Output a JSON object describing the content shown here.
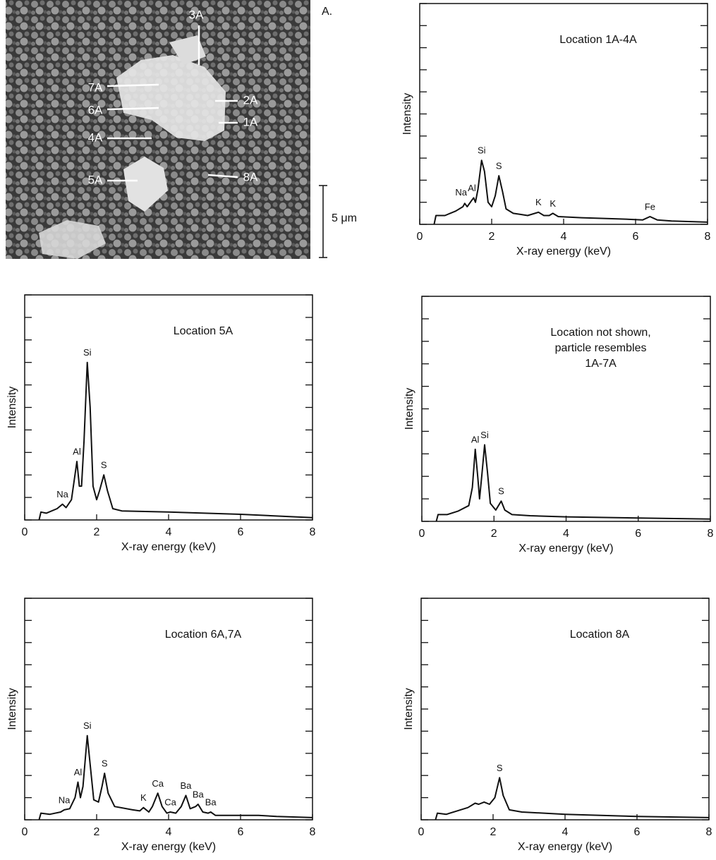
{
  "image": {
    "panel_label": "A.",
    "scale_bar": "5 μm",
    "labels": [
      "3A",
      "7A",
      "6A",
      "2A",
      "1A",
      "4A",
      "5A",
      "8A"
    ]
  },
  "chart_data": [
    {
      "type": "line",
      "annotation": [
        "Location 1A-4A"
      ],
      "x_label": "X-ray energy (keV)",
      "y_label": "Intensity",
      "xlim": [
        0,
        8
      ],
      "xticks": [
        0,
        2,
        4,
        6,
        8
      ],
      "ylim": [
        0,
        10
      ],
      "yticks": [
        0,
        1,
        2,
        3,
        4,
        5,
        6,
        7,
        8,
        9,
        10
      ],
      "show_ytick_labels": false,
      "color": "#111111",
      "x": [
        0.4,
        0.45,
        0.7,
        1.0,
        1.2,
        1.25,
        1.32,
        1.45,
        1.5,
        1.55,
        1.62,
        1.72,
        1.8,
        1.9,
        2.0,
        2.1,
        2.2,
        2.3,
        2.4,
        2.6,
        2.8,
        3.0,
        3.3,
        3.45,
        3.6,
        3.7,
        3.85,
        4.5,
        5.5,
        6.2,
        6.4,
        6.6,
        7.0,
        8.0
      ],
      "values": [
        0,
        0.4,
        0.4,
        0.6,
        0.8,
        0.95,
        0.8,
        1.1,
        1.2,
        1.0,
        1.6,
        2.9,
        2.4,
        1.0,
        0.8,
        1.3,
        2.2,
        1.5,
        0.7,
        0.5,
        0.45,
        0.4,
        0.55,
        0.4,
        0.4,
        0.5,
        0.35,
        0.3,
        0.25,
        0.2,
        0.35,
        0.2,
        0.15,
        0.1
      ],
      "peak_labels": [
        {
          "text": "Na",
          "x": 1.15,
          "y": 1.0
        },
        {
          "text": "Al",
          "x": 1.45,
          "y": 1.2
        },
        {
          "text": "Si",
          "x": 1.72,
          "y": 2.9
        },
        {
          "text": "S",
          "x": 2.2,
          "y": 2.2
        },
        {
          "text": "K",
          "x": 3.3,
          "y": 0.55
        },
        {
          "text": "K",
          "x": 3.7,
          "y": 0.5
        },
        {
          "text": "Fe",
          "x": 6.4,
          "y": 0.35
        }
      ]
    },
    {
      "type": "line",
      "annotation": [
        "Location 5A"
      ],
      "x_label": "X-ray energy (keV)",
      "y_label": "Intensity",
      "xlim": [
        0,
        8
      ],
      "xticks": [
        0,
        2,
        4,
        6,
        8
      ],
      "ylim": [
        0,
        10
      ],
      "yticks": [
        0,
        1,
        2,
        3,
        4,
        5,
        6,
        7,
        8,
        9,
        10
      ],
      "show_ytick_labels": false,
      "color": "#111111",
      "x": [
        0.4,
        0.45,
        0.6,
        0.9,
        1.05,
        1.15,
        1.3,
        1.45,
        1.52,
        1.58,
        1.65,
        1.74,
        1.82,
        1.9,
        2.0,
        2.08,
        2.2,
        2.3,
        2.45,
        2.7,
        4.0,
        6.0,
        8.0
      ],
      "values": [
        0,
        0.35,
        0.3,
        0.5,
        0.7,
        0.55,
        0.9,
        2.6,
        1.5,
        1.5,
        3.5,
        7.0,
        5.0,
        1.5,
        0.9,
        1.3,
        2.0,
        1.3,
        0.5,
        0.4,
        0.35,
        0.25,
        0.1
      ],
      "peak_labels": [
        {
          "text": "Na",
          "x": 1.05,
          "y": 0.7
        },
        {
          "text": "Al",
          "x": 1.45,
          "y": 2.6
        },
        {
          "text": "Si",
          "x": 1.74,
          "y": 7.0
        },
        {
          "text": "S",
          "x": 2.2,
          "y": 2.0
        }
      ]
    },
    {
      "type": "line",
      "annotation": [
        "Location not shown,",
        "particle resembles",
        "1A-7A"
      ],
      "x_label": "X-ray energy (keV)",
      "y_label": "Intensity",
      "xlim": [
        0,
        8
      ],
      "xticks": [
        0,
        2,
        4,
        6,
        8
      ],
      "ylim": [
        0,
        10
      ],
      "yticks": [
        0,
        1,
        2,
        3,
        4,
        5,
        6,
        7,
        8,
        9,
        10
      ],
      "show_ytick_labels": false,
      "color": "#111111",
      "x": [
        0.4,
        0.45,
        0.7,
        1.0,
        1.3,
        1.4,
        1.48,
        1.55,
        1.6,
        1.66,
        1.74,
        1.82,
        1.9,
        2.05,
        2.2,
        2.3,
        2.5,
        3.0,
        4.0,
        6.0,
        8.0
      ],
      "values": [
        0,
        0.3,
        0.3,
        0.45,
        0.7,
        1.5,
        3.2,
        2.0,
        1.0,
        2.0,
        3.4,
        2.2,
        0.8,
        0.5,
        0.9,
        0.5,
        0.3,
        0.25,
        0.2,
        0.15,
        0.1
      ],
      "peak_labels": [
        {
          "text": "Al",
          "x": 1.48,
          "y": 3.2
        },
        {
          "text": "Si",
          "x": 1.74,
          "y": 3.4
        },
        {
          "text": "S",
          "x": 2.2,
          "y": 0.9
        }
      ]
    },
    {
      "type": "line",
      "annotation": [
        "Location 6A,7A"
      ],
      "x_label": "X-ray energy (keV)",
      "y_label": "Intensity",
      "xlim": [
        0,
        8
      ],
      "xticks": [
        0,
        2,
        4,
        6,
        8
      ],
      "ylim": [
        0,
        10
      ],
      "yticks": [
        0,
        1,
        2,
        3,
        4,
        5,
        6,
        7,
        8,
        9,
        10
      ],
      "show_ytick_labels": false,
      "color": "#111111",
      "x": [
        0.4,
        0.45,
        0.7,
        1.0,
        1.1,
        1.25,
        1.4,
        1.48,
        1.55,
        1.62,
        1.74,
        1.82,
        1.92,
        2.05,
        2.15,
        2.22,
        2.32,
        2.5,
        3.0,
        3.2,
        3.3,
        3.45,
        3.55,
        3.7,
        3.82,
        3.95,
        4.05,
        4.2,
        4.35,
        4.48,
        4.6,
        4.75,
        4.82,
        4.95,
        5.1,
        5.17,
        5.3,
        6.0,
        6.5,
        7.0,
        8.0
      ],
      "values": [
        0,
        0.3,
        0.25,
        0.35,
        0.45,
        0.5,
        1.0,
        1.7,
        1.0,
        1.5,
        3.8,
        2.5,
        0.9,
        0.8,
        1.5,
        2.1,
        1.2,
        0.6,
        0.45,
        0.4,
        0.55,
        0.35,
        0.6,
        1.2,
        0.6,
        0.3,
        0.35,
        0.3,
        0.6,
        1.1,
        0.5,
        0.6,
        0.7,
        0.35,
        0.3,
        0.35,
        0.2,
        0.2,
        0.2,
        0.15,
        0.1
      ],
      "peak_labels": [
        {
          "text": "Na",
          "x": 1.1,
          "y": 0.45
        },
        {
          "text": "Al",
          "x": 1.48,
          "y": 1.7
        },
        {
          "text": "Si",
          "x": 1.74,
          "y": 3.8
        },
        {
          "text": "S",
          "x": 2.22,
          "y": 2.1
        },
        {
          "text": "K",
          "x": 3.3,
          "y": 0.55
        },
        {
          "text": "Ca",
          "x": 3.7,
          "y": 1.2
        },
        {
          "text": "Ca",
          "x": 4.05,
          "y": 0.35
        },
        {
          "text": "Ba",
          "x": 4.48,
          "y": 1.1
        },
        {
          "text": "Ba",
          "x": 4.82,
          "y": 0.7
        },
        {
          "text": "Ba",
          "x": 5.17,
          "y": 0.35
        }
      ]
    },
    {
      "type": "line",
      "annotation": [
        "Location 8A"
      ],
      "x_label": "X-ray energy (keV)",
      "y_label": "Intensity",
      "xlim": [
        0,
        8
      ],
      "xticks": [
        0,
        2,
        4,
        6,
        8
      ],
      "ylim": [
        0,
        10
      ],
      "yticks": [
        0,
        1,
        2,
        3,
        4,
        5,
        6,
        7,
        8,
        9,
        10
      ],
      "show_ytick_labels": false,
      "color": "#111111",
      "x": [
        0.4,
        0.45,
        0.7,
        1.0,
        1.3,
        1.5,
        1.6,
        1.75,
        1.9,
        2.05,
        2.18,
        2.28,
        2.45,
        2.8,
        4.0,
        6.0,
        8.0
      ],
      "values": [
        0,
        0.3,
        0.25,
        0.4,
        0.55,
        0.75,
        0.7,
        0.8,
        0.7,
        1.0,
        1.9,
        1.1,
        0.45,
        0.35,
        0.25,
        0.15,
        0.1
      ],
      "peak_labels": [
        {
          "text": "S",
          "x": 2.18,
          "y": 1.9
        }
      ]
    }
  ]
}
